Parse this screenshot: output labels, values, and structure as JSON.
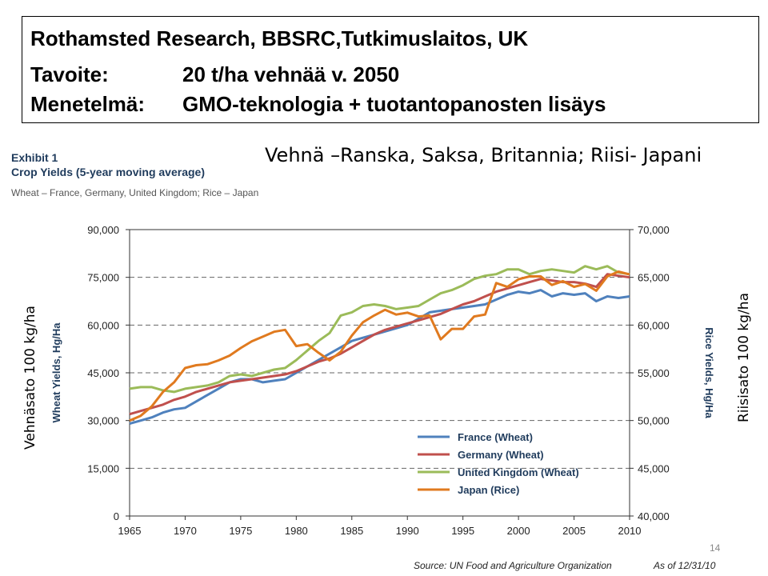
{
  "header": {
    "line1": "Rothamsted Research, BBSRC,Tutkimuslaitos, UK",
    "goal_label": "Tavoite:",
    "goal_value": "20 t/ha vehnää v. 2050",
    "method_label": "Menetelmä:",
    "method_value": "GMO-teknologia + tuotantopanosten lisäys"
  },
  "subtitle": "Vehnä –Ranska, Saksa, Britannia; Riisi- Japani",
  "exhibit": {
    "number": "Exhibit 1",
    "title": "Crop Yields (5-year moving average)",
    "description": "Wheat – France, Germany, United Kingdom; Rice – Japan"
  },
  "annotations": {
    "left_axis_note": "Vehnäsato 100 kg/ha",
    "right_axis_note": "Riisisato 100 kg/ha"
  },
  "page_number": "14",
  "source": {
    "text": "Source:  UN Food and Agriculture Organization",
    "as_of": "As of 12/31/10"
  },
  "chart_data": {
    "type": "line",
    "ylabel": "Wheat Yields, Hg/Ha",
    "y2label": "Rice Yields, Hg/Ha",
    "xlim": [
      1965,
      2010
    ],
    "ylim": [
      0,
      90000
    ],
    "y2lim": [
      40000,
      70000
    ],
    "x_ticks": [
      "1965",
      "1970",
      "1975",
      "1980",
      "1985",
      "1990",
      "1995",
      "2000",
      "2005",
      "2010"
    ],
    "y_ticks": [
      "0",
      "15,000",
      "30,000",
      "45,000",
      "60,000",
      "75,000",
      "90,000"
    ],
    "y2_ticks": [
      "40,000",
      "45,000",
      "50,000",
      "55,000",
      "60,000",
      "65,000",
      "70,000"
    ],
    "grid": "horizontal dashed",
    "legend_position": "bottom-right",
    "x": [
      1965,
      1966,
      1967,
      1968,
      1969,
      1970,
      1971,
      1972,
      1973,
      1974,
      1975,
      1976,
      1977,
      1978,
      1979,
      1980,
      1981,
      1982,
      1983,
      1984,
      1985,
      1986,
      1987,
      1988,
      1989,
      1990,
      1991,
      1992,
      1993,
      1994,
      1995,
      1996,
      1997,
      1998,
      1999,
      2000,
      2001,
      2002,
      2003,
      2004,
      2005,
      2006,
      2007,
      2008,
      2009,
      2010
    ],
    "series": [
      {
        "name": "France (Wheat)",
        "axis": "left",
        "color": "#4f81bd",
        "values": [
          29000,
          30000,
          31000,
          32500,
          33500,
          34000,
          36000,
          38000,
          40000,
          42000,
          43000,
          43000,
          42000,
          42500,
          43000,
          45000,
          47000,
          49000,
          51000,
          53000,
          55000,
          56000,
          57000,
          58000,
          59000,
          60000,
          62000,
          64000,
          64500,
          65000,
          65500,
          66000,
          66500,
          68000,
          69500,
          70500,
          70000,
          71000,
          69000,
          70000,
          69500,
          70000,
          67500,
          69000,
          68500,
          69000
        ]
      },
      {
        "name": "Germany (Wheat)",
        "axis": "left",
        "color": "#c0504d",
        "values": [
          32000,
          33000,
          34000,
          35000,
          36500,
          37500,
          39000,
          40000,
          41000,
          42000,
          42500,
          43000,
          43500,
          44000,
          44500,
          45500,
          47000,
          48500,
          49500,
          51000,
          53000,
          55000,
          57000,
          58500,
          59500,
          60500,
          61500,
          62500,
          63500,
          65000,
          66500,
          67500,
          69000,
          70500,
          71500,
          72500,
          73500,
          74500,
          74000,
          73500,
          73500,
          73000,
          72000,
          76000,
          75500,
          75000
        ]
      },
      {
        "name": "United Kingdom (Wheat)",
        "axis": "left",
        "color": "#9bbb59",
        "values": [
          40000,
          40500,
          40500,
          39500,
          39000,
          40000,
          40500,
          41000,
          42000,
          44000,
          44500,
          44000,
          45000,
          46000,
          46500,
          49000,
          52000,
          55000,
          57500,
          63000,
          64000,
          66000,
          66500,
          66000,
          65000,
          65500,
          66000,
          68000,
          70000,
          71000,
          72500,
          74500,
          75500,
          76000,
          77500,
          77500,
          76000,
          77000,
          77500,
          77000,
          76500,
          78500,
          77500,
          78500,
          76500,
          76000
        ]
      },
      {
        "name": "Japan (Rice)",
        "axis": "right",
        "color": "#e07a1f",
        "values": [
          50000,
          50500,
          51500,
          53000,
          54000,
          55500,
          55800,
          55900,
          56300,
          56800,
          57600,
          58300,
          58800,
          59300,
          59500,
          57800,
          58000,
          57100,
          56300,
          57200,
          58900,
          60300,
          61000,
          61600,
          61100,
          61300,
          60900,
          61000,
          58500,
          59600,
          59600,
          60900,
          61100,
          64400,
          64000,
          64800,
          65100,
          65100,
          64200,
          64600,
          64000,
          64300,
          63600,
          65100,
          65600,
          65300
        ]
      }
    ]
  }
}
